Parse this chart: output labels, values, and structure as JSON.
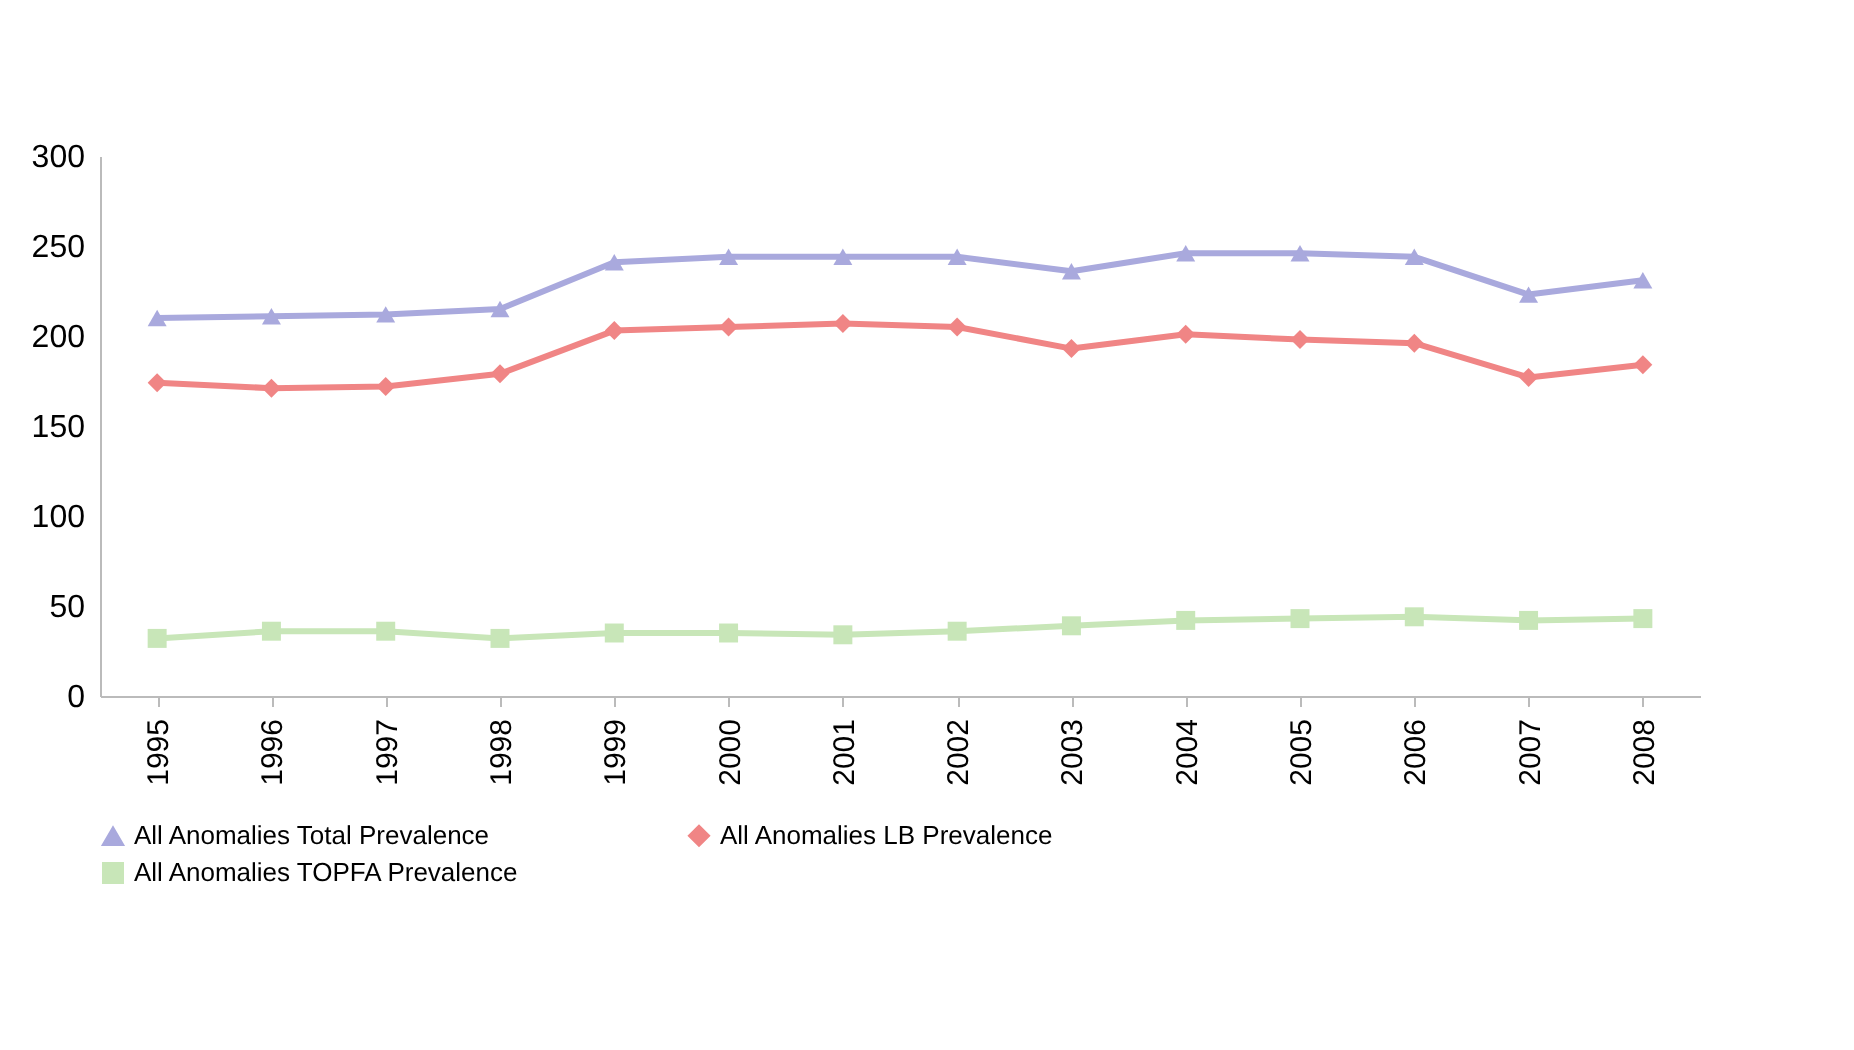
{
  "chart_data": {
    "type": "line",
    "categories": [
      "1995",
      "1996",
      "1997",
      "1998",
      "1999",
      "2000",
      "2001",
      "2002",
      "2003",
      "2004",
      "2005",
      "2006",
      "2007",
      "2008"
    ],
    "series": [
      {
        "name": "All Anomalies Total Prevalence",
        "color": "#a9a9dd",
        "marker": "triangle",
        "values": [
          210,
          211,
          212,
          215,
          241,
          244,
          244,
          244,
          236,
          246,
          246,
          244,
          223,
          231
        ]
      },
      {
        "name": "All Anomalies LB Prevalence",
        "color": "#f08585",
        "marker": "diamond",
        "values": [
          174,
          171,
          172,
          179,
          203,
          205,
          207,
          205,
          193,
          201,
          198,
          196,
          177,
          184
        ]
      },
      {
        "name": "All Anomalies TOPFA Prevalence",
        "color": "#c8e6b8",
        "marker": "square",
        "values": [
          32,
          36,
          36,
          32,
          35,
          35,
          34,
          36,
          39,
          42,
          43,
          44,
          42,
          43
        ]
      }
    ],
    "ylim": [
      0,
      300
    ],
    "yticks": [
      0,
      50,
      100,
      150,
      200,
      250,
      300
    ],
    "grid": false,
    "legend": "bottom",
    "line_style": "solid"
  }
}
